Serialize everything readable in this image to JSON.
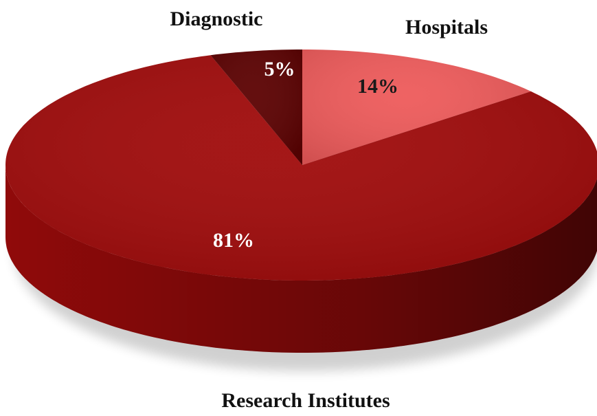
{
  "chart_data": {
    "type": "pie",
    "categories": [
      "Hospitals",
      "Research Institutes",
      "Diagnostic"
    ],
    "values": [
      14,
      81,
      5
    ],
    "value_labels": [
      "14%",
      "81%",
      "5%"
    ],
    "colors": [
      "#ee5b5b",
      "#a00b0b",
      "#5c0202"
    ]
  }
}
